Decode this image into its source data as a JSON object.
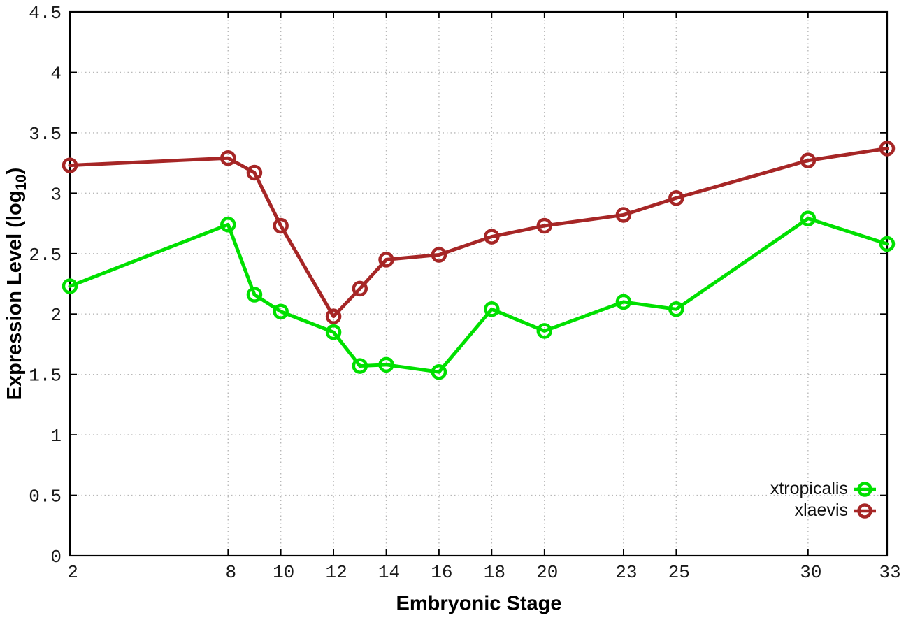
{
  "chart_data": {
    "type": "line",
    "title": "",
    "xlabel": "Embryonic Stage",
    "ylabel_parts": {
      "pre": "Expression Level (log",
      "sub": "10",
      "post": ")"
    },
    "x": [
      2,
      8,
      9,
      10,
      12,
      13,
      14,
      16,
      18,
      20,
      23,
      25,
      30,
      33
    ],
    "series": [
      {
        "name": "xtropicalis",
        "color": "#00e000",
        "values": [
          2.23,
          2.74,
          2.16,
          2.02,
          1.85,
          1.57,
          1.58,
          1.52,
          2.04,
          1.86,
          2.1,
          2.04,
          2.79,
          2.58
        ]
      },
      {
        "name": "xlaevis",
        "color": "#a62626",
        "values": [
          3.23,
          3.29,
          3.17,
          2.73,
          1.98,
          2.21,
          2.45,
          2.49,
          2.64,
          2.73,
          2.82,
          2.96,
          3.27,
          3.37
        ]
      }
    ],
    "xlim": [
      2,
      33
    ],
    "ylim": [
      0,
      4.5
    ],
    "x_ticks": [
      2,
      8,
      10,
      12,
      14,
      16,
      18,
      20,
      23,
      25,
      30,
      33
    ],
    "x_tick_labels": [
      "2",
      "8",
      "10",
      "12",
      "14",
      "16",
      "18",
      "20",
      "23",
      "25",
      "30",
      "33"
    ],
    "y_ticks": [
      0,
      0.5,
      1,
      1.5,
      2,
      2.5,
      3,
      3.5,
      4,
      4.5
    ],
    "y_tick_labels": [
      "0",
      "0.5",
      "1",
      "1.5",
      "2",
      "2.5",
      "3",
      "3.5",
      "4",
      "4.5"
    ],
    "grid": true,
    "grid_style": "dotted",
    "point_style": "open-circle",
    "legend_position": "bottom-right",
    "background_color": "#ffffff",
    "border_color": "#000000"
  }
}
